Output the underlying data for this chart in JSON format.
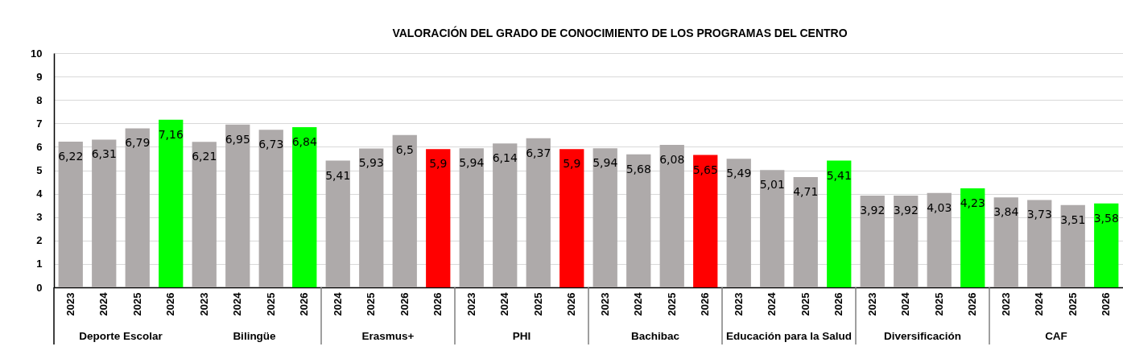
{
  "chart_data": {
    "type": "bar",
    "title": "VALORACIÓN DEL GRADO DE CONOCIMIENTO DE LOS PROGRAMAS DEL CENTRO",
    "categories": [
      "2023",
      "2024",
      "2025",
      "2026",
      "2023",
      "2024",
      "2025",
      "2026",
      "2024",
      "2025",
      "2026",
      "2026",
      "2023",
      "2024",
      "2025",
      "2026",
      "2023",
      "2024",
      "2025",
      "2026",
      "2023",
      "2024",
      "2025",
      "2026",
      "2023",
      "2024",
      "2025",
      "2026",
      "2023",
      "2024",
      "2025",
      "2026"
    ],
    "values": [
      6.22,
      6.31,
      6.79,
      7.16,
      6.21,
      6.95,
      6.73,
      6.84,
      5.41,
      5.93,
      6.5,
      5.9,
      5.94,
      6.14,
      6.37,
      5.9,
      5.94,
      5.68,
      6.08,
      5.65,
      5.49,
      5.01,
      4.71,
      5.41,
      3.92,
      3.92,
      4.03,
      4.23,
      3.84,
      3.73,
      3.51,
      3.58
    ],
    "value_labels": [
      "6,22",
      "6,31",
      "6,79",
      "7,16",
      "6,21",
      "6,95",
      "6,73",
      "6,84",
      "5,41",
      "5,93",
      "6,5",
      "5,9",
      "5,94",
      "6,14",
      "6,37",
      "5,9",
      "5,94",
      "5,68",
      "6,08",
      "5,65",
      "5,49",
      "5,01",
      "4,71",
      "5,41",
      "3,92",
      "3,92",
      "4,03",
      "4,23",
      "3,84",
      "3,73",
      "3,51",
      "3,58"
    ],
    "colors": [
      "#aeaaaa",
      "#aeaaaa",
      "#aeaaaa",
      "#00ff00",
      "#aeaaaa",
      "#aeaaaa",
      "#aeaaaa",
      "#00ff00",
      "#aeaaaa",
      "#aeaaaa",
      "#aeaaaa",
      "#ff0000",
      "#aeaaaa",
      "#aeaaaa",
      "#aeaaaa",
      "#ff0000",
      "#aeaaaa",
      "#aeaaaa",
      "#aeaaaa",
      "#ff0000",
      "#aeaaaa",
      "#aeaaaa",
      "#aeaaaa",
      "#00ff00",
      "#aeaaaa",
      "#aeaaaa",
      "#aeaaaa",
      "#00ff00",
      "#aeaaaa",
      "#aeaaaa",
      "#aeaaaa",
      "#00ff00"
    ],
    "annotations": [
      "Deporte Escolar",
      "Bilingüe",
      "Erasmus+",
      "PHI",
      "Bachibac",
      "Educación para la Salud",
      "Diversificación",
      "CAF"
    ],
    "ylim": [
      0,
      10
    ],
    "yticks": [
      0,
      1,
      2,
      3,
      4,
      5,
      6,
      7,
      8,
      9,
      10
    ],
    "grid": "y"
  }
}
